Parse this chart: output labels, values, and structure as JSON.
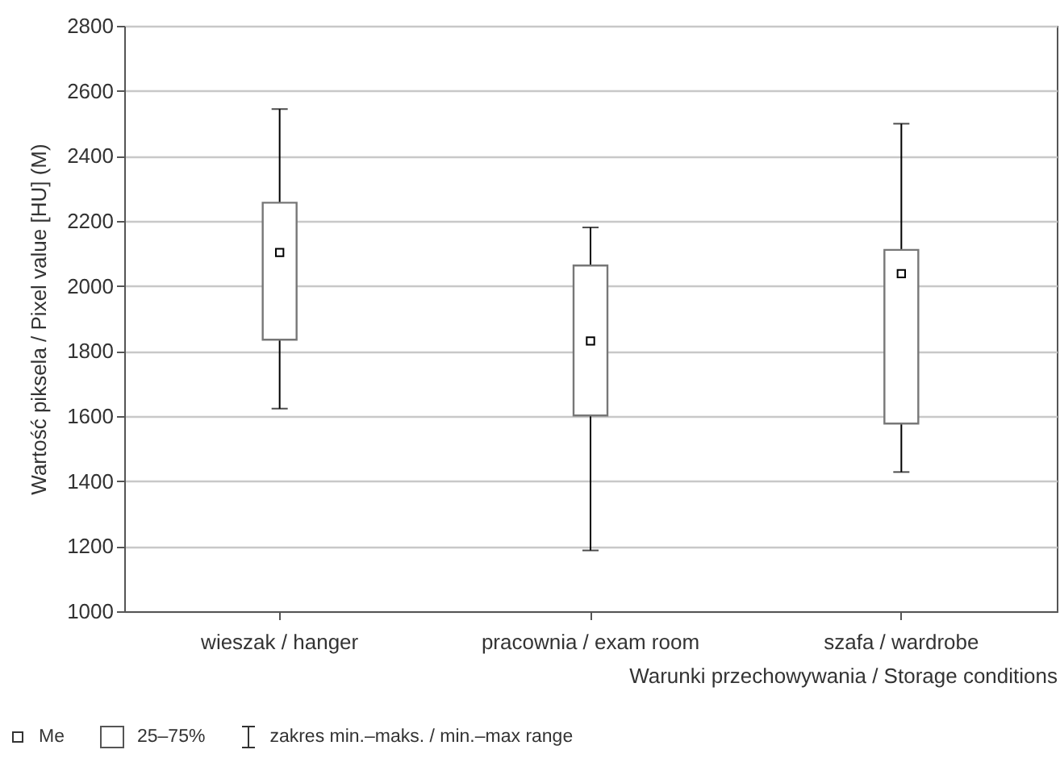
{
  "chart_data": {
    "type": "box",
    "xlabel": "Warunki przechowywania / Storage conditions",
    "ylabel": "Wartość piksela / Pixel value [HU] (M)",
    "categories": [
      "wieszak / hanger",
      "pracownia / exam room",
      "szafa / wardrobe"
    ],
    "boxes": [
      {
        "low": 1623,
        "q1": 1835,
        "median": 2103,
        "q3": 2256,
        "high": 2544
      },
      {
        "low": 1187,
        "q1": 1602,
        "median": 1831,
        "q3": 2063,
        "high": 2180
      },
      {
        "low": 1428,
        "q1": 1577,
        "median": 2038,
        "q3": 2111,
        "high": 2499
      }
    ],
    "ylim": [
      1000,
      2800
    ],
    "yticks": [
      1000,
      1200,
      1400,
      1600,
      1800,
      2000,
      2200,
      2400,
      2600,
      2800
    ],
    "grid": "y",
    "marker": "square",
    "annotations": [
      "Me",
      "25–75%",
      "zakres min.–maks. / min.–max range"
    ]
  }
}
